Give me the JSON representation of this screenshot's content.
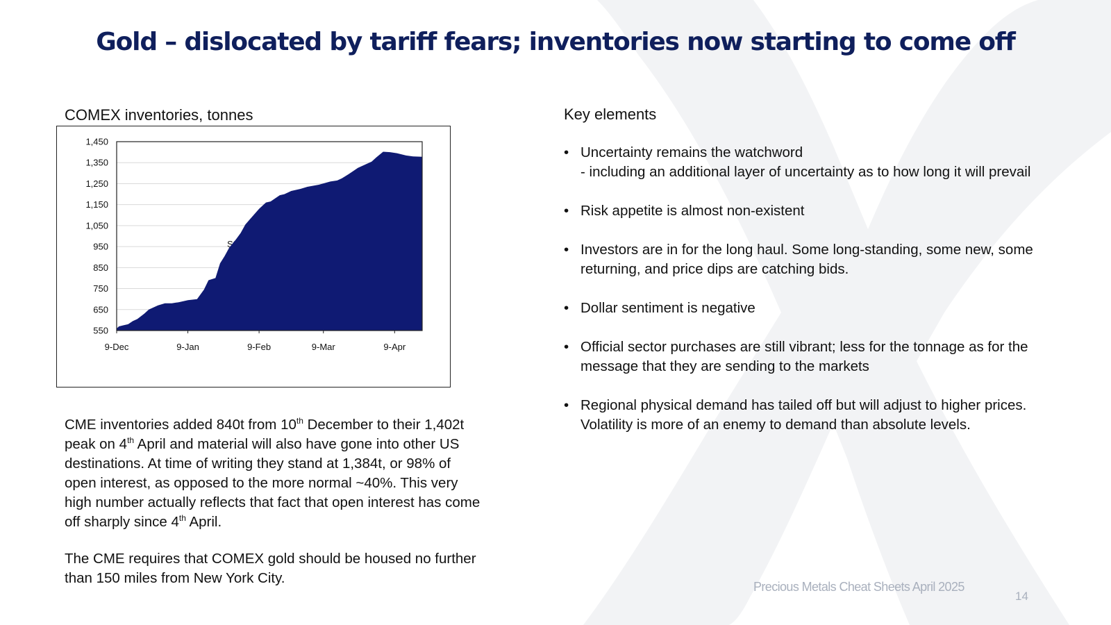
{
  "slide": {
    "title": "Gold – dislocated by tariff fears; inventories now starting to come off",
    "footer": "Precious Metals Cheat Sheets April 2025",
    "page_number": "14"
  },
  "left": {
    "chart_caption": "COMEX inventories, tonnes",
    "watermark": "St",
    "para1": {
      "p1": "CME inventories added 840t from 10",
      "sup1": "th",
      "p2": " December to their 1,402t peak on 4",
      "sup2": "th",
      "p3": " April and material will also have gone into other US destinations.  At time of writing they stand at 1,384t, or 98% of open interest, as opposed to the more normal ~40%. This very high number actually reflects that fact that open interest has come off sharply since 4",
      "sup3": "th",
      "p4": " April."
    },
    "para2": "The CME requires that COMEX gold should be housed no further than 150 miles from New York City."
  },
  "right": {
    "heading": "Key elements",
    "bullet_glyph": "•",
    "bullets": [
      {
        "text": "Uncertainty remains the watchword",
        "sub": "- including an additional layer of uncertainty as to how long it will prevail"
      },
      {
        "text": "Risk appetite is almost non-existent"
      },
      {
        "text": "Investors are in for the long haul.  Some long-standing, some new, some returning, and price dips are catching bids."
      },
      {
        "text": "Dollar sentiment is negative"
      },
      {
        "text": "Official sector purchases are still vibrant; less for the tonnage as for the message that they are sending to the markets"
      },
      {
        "text": "Regional physical demand has tailed off but will adjust to higher prices.  Volatility is more of an enemy to demand than absolute levels."
      }
    ]
  },
  "colors": {
    "title": "#0f1f5c",
    "area_fill": "#0f1a73",
    "gridline": "#d9d9d9",
    "footer": "#a9b0bd"
  },
  "chart_data": {
    "type": "area",
    "title": "COMEX inventories, tonnes",
    "xlabel": "",
    "ylabel": "",
    "ylim": [
      550,
      1450
    ],
    "yticks": [
      550,
      650,
      750,
      850,
      950,
      1050,
      1150,
      1250,
      1350,
      1450
    ],
    "ytick_labels": [
      "550",
      "650",
      "750",
      "850",
      "950",
      "1,050",
      "1,150",
      "1,250",
      "1,350",
      "1,450"
    ],
    "xticks": [
      "2024-12-09",
      "2025-01-09",
      "2025-02-09",
      "2025-03-09",
      "2025-04-09"
    ],
    "xtick_labels": [
      "9-Dec",
      "9-Jan",
      "9-Feb",
      "9-Mar",
      "9-Apr"
    ],
    "xlim": [
      "2024-12-09",
      "2025-04-21"
    ],
    "grid": true,
    "legend": "none",
    "series": [
      {
        "x": [
          "2024-12-09",
          "2024-12-10",
          "2024-12-12",
          "2024-12-14",
          "2024-12-16",
          "2024-12-18",
          "2024-12-21",
          "2024-12-23",
          "2024-12-25",
          "2024-12-27",
          "2024-12-30",
          "2025-01-02",
          "2025-01-05",
          "2025-01-09",
          "2025-01-13",
          "2025-01-16",
          "2025-01-18",
          "2025-01-21",
          "2025-01-23",
          "2025-01-25",
          "2025-01-27",
          "2025-01-30",
          "2025-02-01",
          "2025-02-03",
          "2025-02-05",
          "2025-02-07",
          "2025-02-09",
          "2025-02-12",
          "2025-02-14",
          "2025-02-18",
          "2025-02-20",
          "2025-02-23",
          "2025-02-27",
          "2025-03-02",
          "2025-03-07",
          "2025-03-12",
          "2025-03-15",
          "2025-03-17",
          "2025-03-20",
          "2025-03-22",
          "2025-03-24",
          "2025-03-27",
          "2025-03-30",
          "2025-04-01",
          "2025-04-04",
          "2025-04-07",
          "2025-04-10",
          "2025-04-14",
          "2025-04-17",
          "2025-04-21"
        ],
        "y": [
          560,
          570,
          575,
          580,
          595,
          605,
          630,
          650,
          660,
          670,
          680,
          680,
          685,
          695,
          700,
          745,
          790,
          800,
          870,
          905,
          945,
          985,
          1015,
          1055,
          1080,
          1105,
          1130,
          1160,
          1165,
          1195,
          1200,
          1215,
          1225,
          1235,
          1245,
          1260,
          1265,
          1275,
          1295,
          1310,
          1325,
          1340,
          1355,
          1375,
          1402,
          1400,
          1395,
          1384,
          1380,
          1378
        ]
      }
    ]
  }
}
